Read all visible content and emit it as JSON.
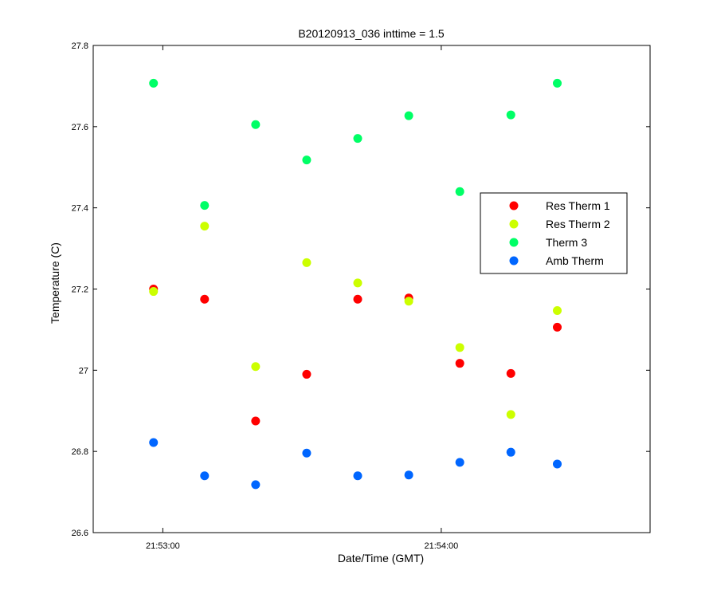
{
  "chart_data": {
    "type": "scatter",
    "title": "B20120913_036 inttime = 1.5",
    "xlabel": "Date/Time (GMT)",
    "ylabel": "Temperature (C)",
    "xlim": [
      "21:52:45",
      "21:54:45"
    ],
    "ylim": [
      26.6,
      27.8
    ],
    "x_ticks": [
      "21:53:00",
      "21:54:00"
    ],
    "y_ticks": [
      "26.6",
      "26.8",
      "27",
      "27.2",
      "27.4",
      "27.6",
      "27.8"
    ],
    "grid": false,
    "legend_position": "right",
    "x": [
      "21:52:58",
      "21:53:09",
      "21:53:20",
      "21:53:31",
      "21:53:42",
      "21:53:53",
      "21:54:04",
      "21:54:15",
      "21:54:25"
    ],
    "series": [
      {
        "name": "Res Therm 1",
        "color": "#ff0000",
        "values": [
          27.2,
          27.175,
          26.875,
          26.99,
          27.175,
          27.178,
          27.017,
          26.992,
          27.106
        ]
      },
      {
        "name": "Res Therm 2",
        "color": "#ccff00",
        "values": [
          27.194,
          27.355,
          27.009,
          27.265,
          27.215,
          27.17,
          27.056,
          26.891,
          27.147
        ]
      },
      {
        "name": "Therm 3",
        "color": "#00ff66",
        "values": [
          27.707,
          27.406,
          27.605,
          27.518,
          27.571,
          27.627,
          27.44,
          27.629,
          27.707
        ]
      },
      {
        "name": "Amb Therm",
        "color": "#0066ff",
        "values": [
          26.822,
          26.74,
          26.718,
          26.796,
          26.74,
          26.742,
          26.773,
          26.798,
          26.769
        ]
      }
    ]
  }
}
